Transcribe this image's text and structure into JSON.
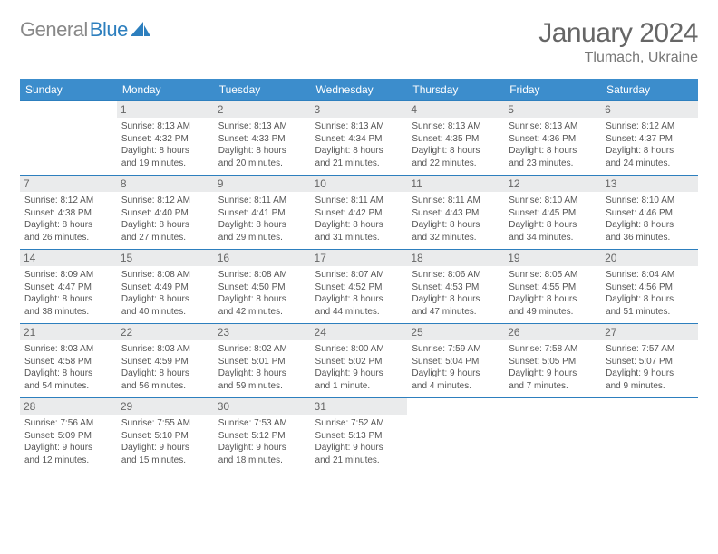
{
  "logo": {
    "part1": "General",
    "part2": "Blue"
  },
  "title": "January 2024",
  "location": "Tlumach, Ukraine",
  "colors": {
    "header_bg": "#3C8DCC",
    "row_border": "#2D7FBE",
    "daynum_bg": "#EAEBEC",
    "text": "#555555"
  },
  "weekdays": [
    "Sunday",
    "Monday",
    "Tuesday",
    "Wednesday",
    "Thursday",
    "Friday",
    "Saturday"
  ],
  "weeks": [
    [
      null,
      {
        "n": "1",
        "sr": "Sunrise: 8:13 AM",
        "ss": "Sunset: 4:32 PM",
        "d1": "Daylight: 8 hours",
        "d2": "and 19 minutes."
      },
      {
        "n": "2",
        "sr": "Sunrise: 8:13 AM",
        "ss": "Sunset: 4:33 PM",
        "d1": "Daylight: 8 hours",
        "d2": "and 20 minutes."
      },
      {
        "n": "3",
        "sr": "Sunrise: 8:13 AM",
        "ss": "Sunset: 4:34 PM",
        "d1": "Daylight: 8 hours",
        "d2": "and 21 minutes."
      },
      {
        "n": "4",
        "sr": "Sunrise: 8:13 AM",
        "ss": "Sunset: 4:35 PM",
        "d1": "Daylight: 8 hours",
        "d2": "and 22 minutes."
      },
      {
        "n": "5",
        "sr": "Sunrise: 8:13 AM",
        "ss": "Sunset: 4:36 PM",
        "d1": "Daylight: 8 hours",
        "d2": "and 23 minutes."
      },
      {
        "n": "6",
        "sr": "Sunrise: 8:12 AM",
        "ss": "Sunset: 4:37 PM",
        "d1": "Daylight: 8 hours",
        "d2": "and 24 minutes."
      }
    ],
    [
      {
        "n": "7",
        "sr": "Sunrise: 8:12 AM",
        "ss": "Sunset: 4:38 PM",
        "d1": "Daylight: 8 hours",
        "d2": "and 26 minutes."
      },
      {
        "n": "8",
        "sr": "Sunrise: 8:12 AM",
        "ss": "Sunset: 4:40 PM",
        "d1": "Daylight: 8 hours",
        "d2": "and 27 minutes."
      },
      {
        "n": "9",
        "sr": "Sunrise: 8:11 AM",
        "ss": "Sunset: 4:41 PM",
        "d1": "Daylight: 8 hours",
        "d2": "and 29 minutes."
      },
      {
        "n": "10",
        "sr": "Sunrise: 8:11 AM",
        "ss": "Sunset: 4:42 PM",
        "d1": "Daylight: 8 hours",
        "d2": "and 31 minutes."
      },
      {
        "n": "11",
        "sr": "Sunrise: 8:11 AM",
        "ss": "Sunset: 4:43 PM",
        "d1": "Daylight: 8 hours",
        "d2": "and 32 minutes."
      },
      {
        "n": "12",
        "sr": "Sunrise: 8:10 AM",
        "ss": "Sunset: 4:45 PM",
        "d1": "Daylight: 8 hours",
        "d2": "and 34 minutes."
      },
      {
        "n": "13",
        "sr": "Sunrise: 8:10 AM",
        "ss": "Sunset: 4:46 PM",
        "d1": "Daylight: 8 hours",
        "d2": "and 36 minutes."
      }
    ],
    [
      {
        "n": "14",
        "sr": "Sunrise: 8:09 AM",
        "ss": "Sunset: 4:47 PM",
        "d1": "Daylight: 8 hours",
        "d2": "and 38 minutes."
      },
      {
        "n": "15",
        "sr": "Sunrise: 8:08 AM",
        "ss": "Sunset: 4:49 PM",
        "d1": "Daylight: 8 hours",
        "d2": "and 40 minutes."
      },
      {
        "n": "16",
        "sr": "Sunrise: 8:08 AM",
        "ss": "Sunset: 4:50 PM",
        "d1": "Daylight: 8 hours",
        "d2": "and 42 minutes."
      },
      {
        "n": "17",
        "sr": "Sunrise: 8:07 AM",
        "ss": "Sunset: 4:52 PM",
        "d1": "Daylight: 8 hours",
        "d2": "and 44 minutes."
      },
      {
        "n": "18",
        "sr": "Sunrise: 8:06 AM",
        "ss": "Sunset: 4:53 PM",
        "d1": "Daylight: 8 hours",
        "d2": "and 47 minutes."
      },
      {
        "n": "19",
        "sr": "Sunrise: 8:05 AM",
        "ss": "Sunset: 4:55 PM",
        "d1": "Daylight: 8 hours",
        "d2": "and 49 minutes."
      },
      {
        "n": "20",
        "sr": "Sunrise: 8:04 AM",
        "ss": "Sunset: 4:56 PM",
        "d1": "Daylight: 8 hours",
        "d2": "and 51 minutes."
      }
    ],
    [
      {
        "n": "21",
        "sr": "Sunrise: 8:03 AM",
        "ss": "Sunset: 4:58 PM",
        "d1": "Daylight: 8 hours",
        "d2": "and 54 minutes."
      },
      {
        "n": "22",
        "sr": "Sunrise: 8:03 AM",
        "ss": "Sunset: 4:59 PM",
        "d1": "Daylight: 8 hours",
        "d2": "and 56 minutes."
      },
      {
        "n": "23",
        "sr": "Sunrise: 8:02 AM",
        "ss": "Sunset: 5:01 PM",
        "d1": "Daylight: 8 hours",
        "d2": "and 59 minutes."
      },
      {
        "n": "24",
        "sr": "Sunrise: 8:00 AM",
        "ss": "Sunset: 5:02 PM",
        "d1": "Daylight: 9 hours",
        "d2": "and 1 minute."
      },
      {
        "n": "25",
        "sr": "Sunrise: 7:59 AM",
        "ss": "Sunset: 5:04 PM",
        "d1": "Daylight: 9 hours",
        "d2": "and 4 minutes."
      },
      {
        "n": "26",
        "sr": "Sunrise: 7:58 AM",
        "ss": "Sunset: 5:05 PM",
        "d1": "Daylight: 9 hours",
        "d2": "and 7 minutes."
      },
      {
        "n": "27",
        "sr": "Sunrise: 7:57 AM",
        "ss": "Sunset: 5:07 PM",
        "d1": "Daylight: 9 hours",
        "d2": "and 9 minutes."
      }
    ],
    [
      {
        "n": "28",
        "sr": "Sunrise: 7:56 AM",
        "ss": "Sunset: 5:09 PM",
        "d1": "Daylight: 9 hours",
        "d2": "and 12 minutes."
      },
      {
        "n": "29",
        "sr": "Sunrise: 7:55 AM",
        "ss": "Sunset: 5:10 PM",
        "d1": "Daylight: 9 hours",
        "d2": "and 15 minutes."
      },
      {
        "n": "30",
        "sr": "Sunrise: 7:53 AM",
        "ss": "Sunset: 5:12 PM",
        "d1": "Daylight: 9 hours",
        "d2": "and 18 minutes."
      },
      {
        "n": "31",
        "sr": "Sunrise: 7:52 AM",
        "ss": "Sunset: 5:13 PM",
        "d1": "Daylight: 9 hours",
        "d2": "and 21 minutes."
      },
      null,
      null,
      null
    ]
  ]
}
